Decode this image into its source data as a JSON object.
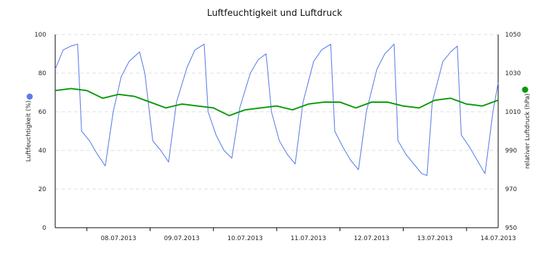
{
  "chart_data": {
    "type": "line",
    "title": "Luftfeuchtigkeit und Luftdruck",
    "grid": true,
    "legend": "none",
    "y_left": {
      "label": "Luftfeuchtigkeit (%)",
      "lim": [
        0,
        100
      ],
      "ticks": [
        "0",
        "20",
        "40",
        "60",
        "80",
        "100"
      ],
      "marker_color": "#5b7ee8"
    },
    "y_right": {
      "label": "relativer Luftdruck (hPa)",
      "lim": [
        950,
        1050
      ],
      "ticks": [
        "950",
        "970",
        "990",
        "1010",
        "1030",
        "1050"
      ],
      "marker_color": "#0a9a0a"
    },
    "x": {
      "day_labels": [
        "08.07.2013",
        "09.07.2013",
        "10.07.2013",
        "11.07.2013",
        "12.07.2013",
        "13.07.2013",
        "14.07.2013"
      ]
    },
    "series": [
      {
        "axis": "left",
        "color": "#5b7ee8",
        "points": [
          [
            "2013-07-07 12:00",
            82
          ],
          [
            "2013-07-07 15:00",
            92
          ],
          [
            "2013-07-07 18:00",
            94
          ],
          [
            "2013-07-07 20:30",
            95
          ],
          [
            "2013-07-07 22:00",
            50
          ],
          [
            "2013-07-08 01:00",
            45
          ],
          [
            "2013-07-08 04:00",
            38
          ],
          [
            "2013-07-08 07:00",
            32
          ],
          [
            "2013-07-08 10:00",
            60
          ],
          [
            "2013-07-08 13:00",
            78
          ],
          [
            "2013-07-08 16:00",
            86
          ],
          [
            "2013-07-08 20:00",
            91
          ],
          [
            "2013-07-08 22:00",
            80
          ],
          [
            "2013-07-09 01:00",
            45
          ],
          [
            "2013-07-09 04:00",
            40
          ],
          [
            "2013-07-09 07:00",
            34
          ],
          [
            "2013-07-09 10:00",
            65
          ],
          [
            "2013-07-09 14:00",
            83
          ],
          [
            "2013-07-09 17:00",
            92
          ],
          [
            "2013-07-09 20:30",
            95
          ],
          [
            "2013-07-09 22:00",
            60
          ],
          [
            "2013-07-10 01:00",
            48
          ],
          [
            "2013-07-10 04:00",
            40
          ],
          [
            "2013-07-10 07:00",
            36
          ],
          [
            "2013-07-10 10:00",
            62
          ],
          [
            "2013-07-10 14:00",
            80
          ],
          [
            "2013-07-10 17:00",
            87
          ],
          [
            "2013-07-10 20:00",
            90
          ],
          [
            "2013-07-10 22:00",
            60
          ],
          [
            "2013-07-11 01:00",
            45
          ],
          [
            "2013-07-11 04:00",
            38
          ],
          [
            "2013-07-11 07:00",
            33
          ],
          [
            "2013-07-11 10:00",
            65
          ],
          [
            "2013-07-11 14:00",
            86
          ],
          [
            "2013-07-11 17:00",
            92
          ],
          [
            "2013-07-11 20:30",
            95
          ],
          [
            "2013-07-11 22:00",
            50
          ],
          [
            "2013-07-12 01:00",
            42
          ],
          [
            "2013-07-12 04:00",
            35
          ],
          [
            "2013-07-12 07:00",
            30
          ],
          [
            "2013-07-12 10:00",
            60
          ],
          [
            "2013-07-12 14:00",
            82
          ],
          [
            "2013-07-12 17:00",
            90
          ],
          [
            "2013-07-12 20:30",
            95
          ],
          [
            "2013-07-12 22:00",
            45
          ],
          [
            "2013-07-13 01:00",
            38
          ],
          [
            "2013-07-13 04:00",
            33
          ],
          [
            "2013-07-13 07:00",
            28
          ],
          [
            "2013-07-13 09:00",
            27
          ],
          [
            "2013-07-13 11:00",
            65
          ],
          [
            "2013-07-13 15:00",
            86
          ],
          [
            "2013-07-13 18:00",
            91
          ],
          [
            "2013-07-13 20:30",
            94
          ],
          [
            "2013-07-13 22:00",
            48
          ],
          [
            "2013-07-14 01:00",
            42
          ],
          [
            "2013-07-14 04:00",
            35
          ],
          [
            "2013-07-14 07:00",
            28
          ],
          [
            "2013-07-14 10:00",
            60
          ],
          [
            "2013-07-14 12:00",
            75
          ]
        ]
      },
      {
        "axis": "right",
        "color": "#0a9a0a",
        "points": [
          [
            "2013-07-07 12:00",
            1021
          ],
          [
            "2013-07-07 18:00",
            1022
          ],
          [
            "2013-07-08 00:00",
            1021
          ],
          [
            "2013-07-08 06:00",
            1017
          ],
          [
            "2013-07-08 12:00",
            1019
          ],
          [
            "2013-07-08 18:00",
            1018
          ],
          [
            "2013-07-09 00:00",
            1015
          ],
          [
            "2013-07-09 06:00",
            1012
          ],
          [
            "2013-07-09 12:00",
            1014
          ],
          [
            "2013-07-09 18:00",
            1013
          ],
          [
            "2013-07-10 00:00",
            1012
          ],
          [
            "2013-07-10 06:00",
            1008
          ],
          [
            "2013-07-10 12:00",
            1011
          ],
          [
            "2013-07-10 18:00",
            1012
          ],
          [
            "2013-07-11 00:00",
            1013
          ],
          [
            "2013-07-11 06:00",
            1011
          ],
          [
            "2013-07-11 12:00",
            1014
          ],
          [
            "2013-07-11 18:00",
            1015
          ],
          [
            "2013-07-12 00:00",
            1015
          ],
          [
            "2013-07-12 06:00",
            1012
          ],
          [
            "2013-07-12 12:00",
            1015
          ],
          [
            "2013-07-12 18:00",
            1015
          ],
          [
            "2013-07-13 00:00",
            1013
          ],
          [
            "2013-07-13 06:00",
            1012
          ],
          [
            "2013-07-13 12:00",
            1016
          ],
          [
            "2013-07-13 18:00",
            1017
          ],
          [
            "2013-07-14 00:00",
            1014
          ],
          [
            "2013-07-14 06:00",
            1013
          ],
          [
            "2013-07-14 12:00",
            1016
          ]
        ]
      }
    ]
  }
}
